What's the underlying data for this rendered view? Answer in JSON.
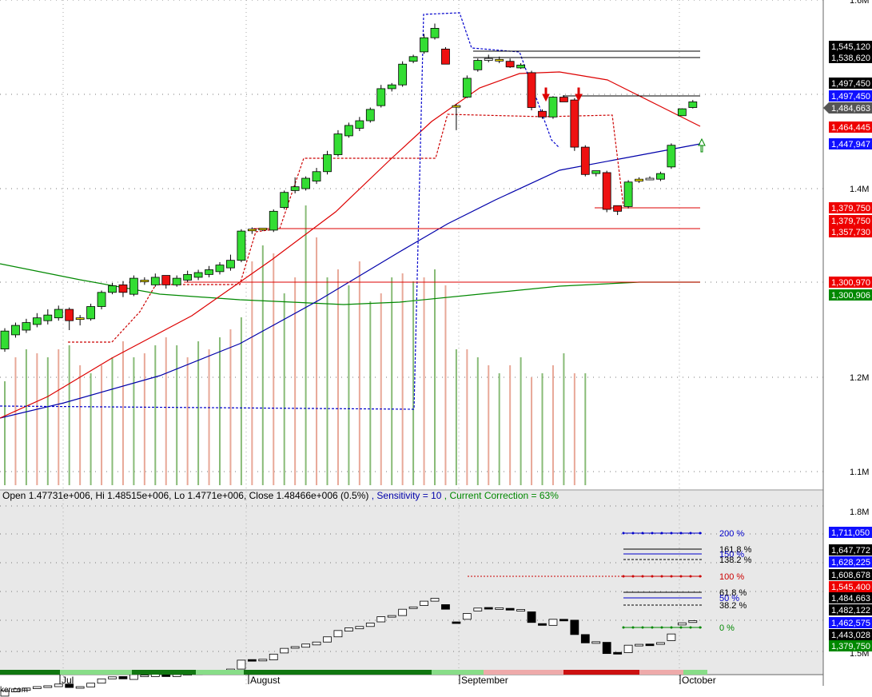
{
  "info_line": {
    "ohlc": "Open 1.47731e+006, Hi 1.48515e+006, Lo 1.4771e+006, Close 1.48466e+006 (0.5%)",
    "sep": " , ",
    "sensitivity": "Sensitivity = 10",
    "correction": "Current Correction = 63%"
  },
  "watermark": "ker.com",
  "colors": {
    "up": "#33dd33",
    "down": "#ee1111",
    "doji": "#ffee00",
    "ma_red": "#dd0000",
    "ma_blue": "#0000aa",
    "ma_green": "#008800",
    "stop": "#cc0000",
    "trail_blue": "#0000cc",
    "lower_bg": "#e8e8e8"
  },
  "chart_data": [
    {
      "type": "candlestick",
      "x_axis_labels": [
        "Jul",
        "August",
        "September",
        "October"
      ],
      "y_tick_labels": [
        "1.6M",
        "1.4M",
        "1.2M",
        "1.1M"
      ],
      "y_range": [
        1080000,
        1600000
      ],
      "candles": [
        [
          1230000,
          1252000,
          1227000,
          1249000
        ],
        [
          1245000,
          1258000,
          1242000,
          1255000
        ],
        [
          1250000,
          1262000,
          1247000,
          1258000
        ],
        [
          1256000,
          1268000,
          1253000,
          1263000
        ],
        [
          1260000,
          1272000,
          1256000,
          1266000
        ],
        [
          1263000,
          1276000,
          1260000,
          1272000
        ],
        [
          1272000,
          1274000,
          1250000,
          1260000
        ],
        [
          1262000,
          1266000,
          1255000,
          1263000
        ],
        [
          1262000,
          1278000,
          1260000,
          1275000
        ],
        [
          1275000,
          1292000,
          1272000,
          1290000
        ],
        [
          1290000,
          1300000,
          1288000,
          1297000
        ],
        [
          1298000,
          1302000,
          1285000,
          1290000
        ],
        [
          1288000,
          1308000,
          1286000,
          1305000
        ],
        [
          1302000,
          1306000,
          1298000,
          1303000
        ],
        [
          1298000,
          1310000,
          1296000,
          1306000
        ],
        [
          1308000,
          1303000,
          1294000,
          1298000
        ],
        [
          1298000,
          1308000,
          1296000,
          1305000
        ],
        [
          1303000,
          1313000,
          1301000,
          1309000
        ],
        [
          1306000,
          1314000,
          1303000,
          1311000
        ],
        [
          1309000,
          1318000,
          1306000,
          1314000
        ],
        [
          1312000,
          1322000,
          1309000,
          1319000
        ],
        [
          1316000,
          1330000,
          1313000,
          1324000
        ],
        [
          1324000,
          1357000,
          1322000,
          1355000
        ],
        [
          1357000,
          1359000,
          1352000,
          1356000
        ],
        [
          1358000,
          1357000,
          1355000,
          1358000
        ],
        [
          1356000,
          1378000,
          1354000,
          1376000
        ],
        [
          1380000,
          1398000,
          1378000,
          1396000
        ],
        [
          1398000,
          1412000,
          1395000,
          1402000
        ],
        [
          1400000,
          1413000,
          1398000,
          1411000
        ],
        [
          1408000,
          1422000,
          1405000,
          1418000
        ],
        [
          1418000,
          1440000,
          1415000,
          1436000
        ],
        [
          1436000,
          1462000,
          1434000,
          1458000
        ],
        [
          1456000,
          1470000,
          1454000,
          1467000
        ],
        [
          1464000,
          1476000,
          1461000,
          1472000
        ],
        [
          1472000,
          1486000,
          1470000,
          1484000
        ],
        [
          1488000,
          1510000,
          1486000,
          1506000
        ],
        [
          1506000,
          1512000,
          1503000,
          1510000
        ],
        [
          1510000,
          1535000,
          1508000,
          1532000
        ],
        [
          1535000,
          1542000,
          1533000,
          1540000
        ],
        [
          1545000,
          1564000,
          1543000,
          1560000
        ],
        [
          1560000,
          1575000,
          1558000,
          1570000
        ],
        [
          1548000,
          1550000,
          1532000,
          1532000
        ],
        [
          1488000,
          1490000,
          1462000,
          1487000
        ],
        [
          1497000,
          1520000,
          1496000,
          1517000
        ],
        [
          1526000,
          1538000,
          1524000,
          1536000
        ],
        [
          1538000,
          1542000,
          1534000,
          1536000
        ],
        [
          1536000,
          1540000,
          1533000,
          1537000
        ],
        [
          1535000,
          1538000,
          1528000,
          1529000
        ],
        [
          1528000,
          1533000,
          1527000,
          1531000
        ],
        [
          1523000,
          1525000,
          1483000,
          1486000
        ],
        [
          1482000,
          1484000,
          1474000,
          1476000
        ],
        [
          1476000,
          1498000,
          1474000,
          1497000
        ],
        [
          1497000,
          1499000,
          1493000,
          1492000
        ],
        [
          1494000,
          1496000,
          1440000,
          1444000
        ],
        [
          1444000,
          1446000,
          1413000,
          1415000
        ],
        [
          1416000,
          1418000,
          1413000,
          1419000
        ],
        [
          1417000,
          1419000,
          1375000,
          1378000
        ],
        [
          1382000,
          1380000,
          1372000,
          1376000
        ],
        [
          1381000,
          1409000,
          1379000,
          1407000
        ],
        [
          1408000,
          1412000,
          1406000,
          1410000
        ],
        [
          1411000,
          1413000,
          1409000,
          1410000
        ],
        [
          1410000,
          1418000,
          1408000,
          1416000
        ],
        [
          1423000,
          1448000,
          1421000,
          1446000
        ],
        [
          1477310,
          1485150,
          1477100,
          1484660
        ],
        [
          1486000,
          1494000,
          1485000,
          1492000
        ]
      ],
      "volume_colors": "alternating green / salmon bars",
      "levels": [
        {
          "label": "1,545,120",
          "bg": "#000000",
          "fg": "#ffffff"
        },
        {
          "label": "1,538,620",
          "bg": "#000000",
          "fg": "#ffffff"
        },
        {
          "label": "1,497,450",
          "bg": "#000000",
          "fg": "#ffffff"
        },
        {
          "label": "1,497,450",
          "bg": "#1010ff",
          "fg": "#ffffff"
        },
        {
          "label": "1,484,663",
          "bg": "#555555",
          "fg": "#ffffff"
        },
        {
          "label": "1,464,445",
          "bg": "#ee0000",
          "fg": "#ffffff"
        },
        {
          "label": "1,447,947",
          "bg": "#1010ff",
          "fg": "#ffffff"
        },
        {
          "label": "1,379,750",
          "bg": "#ee0000",
          "fg": "#ffffff"
        },
        {
          "label": "1,379,750",
          "bg": "#ee0000",
          "fg": "#ffffff"
        },
        {
          "label": "1,357,730",
          "bg": "#ee0000",
          "fg": "#ffffff"
        },
        {
          "label": "1,300,970",
          "bg": "#ee0000",
          "fg": "#ffffff"
        },
        {
          "label": "1,300,906",
          "bg": "#008800",
          "fg": "#ffffff"
        }
      ]
    },
    {
      "type": "line_break",
      "y_tick_labels": [
        "1.8M",
        "1.5M"
      ],
      "fib_labels": [
        "200 %",
        "161.8 %",
        "150 %",
        "138.2 %",
        "100 %",
        "61.8 %",
        "50 %",
        "38.2 %",
        "0 %"
      ],
      "fib_colors": [
        "#0000cc",
        "#000000",
        "#0000cc",
        "#000000",
        "#cc0000",
        "#000000",
        "#0000cc",
        "#000000",
        "#008800"
      ],
      "levels": [
        {
          "label": "1,711,050",
          "bg": "#1010ff",
          "fg": "#ffffff"
        },
        {
          "label": "1,647,772",
          "bg": "#000000",
          "fg": "#ffffff"
        },
        {
          "label": "1,628,225",
          "bg": "#1010ff",
          "fg": "#ffffff"
        },
        {
          "label": "1,608,678",
          "bg": "#000000",
          "fg": "#ffffff"
        },
        {
          "label": "1,545,400",
          "bg": "#ee0000",
          "fg": "#ffffff"
        },
        {
          "label": "1,484,663",
          "bg": "#000000",
          "fg": "#ffffff"
        },
        {
          "label": "1,482,122",
          "bg": "#000000",
          "fg": "#ffffff"
        },
        {
          "label": "1,462,575",
          "bg": "#1010ff",
          "fg": "#ffffff"
        },
        {
          "label": "1,443,028",
          "bg": "#000000",
          "fg": "#ffffff"
        },
        {
          "label": "1,379,750",
          "bg": "#008800",
          "fg": "#ffffff"
        }
      ]
    }
  ]
}
